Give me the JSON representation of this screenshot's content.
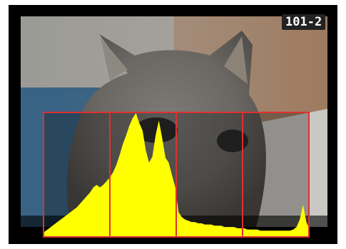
{
  "playback": {
    "file_number": "101-2"
  },
  "histogram": {
    "type": "luminance",
    "grid_divisions": 4,
    "frame_color": "#e03030",
    "fill_color": "#ffff00",
    "levels": [
      0.04,
      0.06,
      0.08,
      0.1,
      0.12,
      0.14,
      0.16,
      0.18,
      0.2,
      0.22,
      0.24,
      0.27,
      0.3,
      0.33,
      0.36,
      0.4,
      0.42,
      0.4,
      0.42,
      0.45,
      0.48,
      0.52,
      0.58,
      0.66,
      0.75,
      0.82,
      0.9,
      0.96,
      1.0,
      0.92,
      0.86,
      0.7,
      0.6,
      0.65,
      0.82,
      0.94,
      0.8,
      0.64,
      0.6,
      0.5,
      0.4,
      0.2,
      0.16,
      0.14,
      0.13,
      0.12,
      0.12,
      0.11,
      0.11,
      0.1,
      0.1,
      0.1,
      0.09,
      0.09,
      0.09,
      0.08,
      0.08,
      0.08,
      0.08,
      0.07,
      0.07,
      0.07,
      0.06,
      0.06,
      0.06,
      0.06,
      0.05,
      0.05,
      0.05,
      0.05,
      0.05,
      0.05,
      0.05,
      0.05,
      0.05,
      0.05,
      0.06,
      0.08,
      0.14,
      0.26,
      0.12,
      0.06
    ]
  }
}
